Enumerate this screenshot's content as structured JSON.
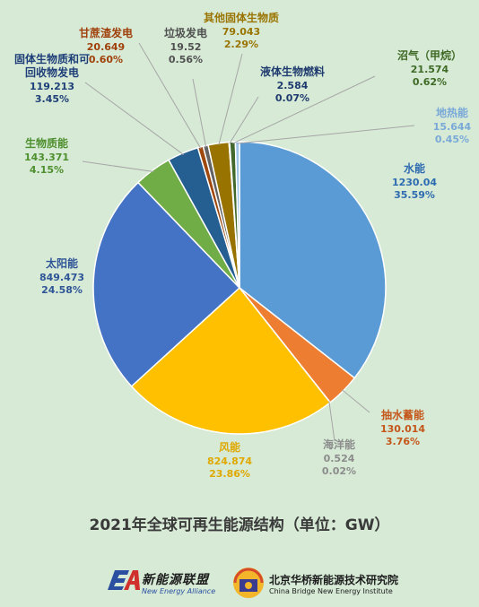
{
  "chart_data": {
    "type": "pie",
    "title": "2021年全球可再生能源结构（单位：GW）",
    "unit": "GW",
    "slices": [
      {
        "name": "水能",
        "value": "1230.04",
        "pct": "35.59%",
        "color": "#5b9bd5",
        "label_color": "#2e6bb0"
      },
      {
        "name": "抽水蓄能",
        "value": "130.014",
        "pct": "3.76%",
        "color": "#ed7d31",
        "label_color": "#c5561a"
      },
      {
        "name": "海洋能",
        "value": "0.524",
        "pct": "0.02%",
        "color": "#a5a5a5",
        "label_color": "#8c8c8c"
      },
      {
        "name": "风能",
        "value": "824.874",
        "pct": "23.86%",
        "color": "#ffc000",
        "label_color": "#e0a800"
      },
      {
        "name": "太阳能",
        "value": "849.473",
        "pct": "24.58%",
        "color": "#4472c4",
        "label_color": "#2f5597"
      },
      {
        "name": "生物质能",
        "value": "143.371",
        "pct": "4.15%",
        "color": "#70ad47",
        "label_color": "#4e8f2e"
      },
      {
        "name": "固体生物质和可回收物发电",
        "value": "119.213",
        "pct": "3.45%",
        "color": "#255e91",
        "label_color": "#1f3f78"
      },
      {
        "name": "甘蔗渣发电",
        "value": "20.649",
        "pct": "0.60%",
        "color": "#9e480e",
        "label_color": "#a0400a"
      },
      {
        "name": "垃圾发电",
        "value": "19.52",
        "pct": "0.56%",
        "color": "#636363",
        "label_color": "#505050"
      },
      {
        "name": "其他固体生物质",
        "value": "79.043",
        "pct": "2.29%",
        "color": "#997300",
        "label_color": "#9a7400"
      },
      {
        "name": "液体生物燃料",
        "value": "2.584",
        "pct": "0.07%",
        "color": "#264478",
        "label_color": "#1f3a6e"
      },
      {
        "name": "沼气（甲烷）",
        "value": "21.574",
        "pct": "0.62%",
        "color": "#43682b",
        "label_color": "#3f6a25"
      },
      {
        "name": "地热能",
        "value": "15.644",
        "pct": "0.45%",
        "color": "#9dc3e6",
        "label_color": "#7aa9d8"
      }
    ]
  },
  "footer": {
    "logo1_cn": "新能源联盟",
    "logo1_en": "New Energy Alliance",
    "logo2_cn": "北京华桥新能源技术研究院",
    "logo2_en": "China Bridge New Energy Institute"
  }
}
